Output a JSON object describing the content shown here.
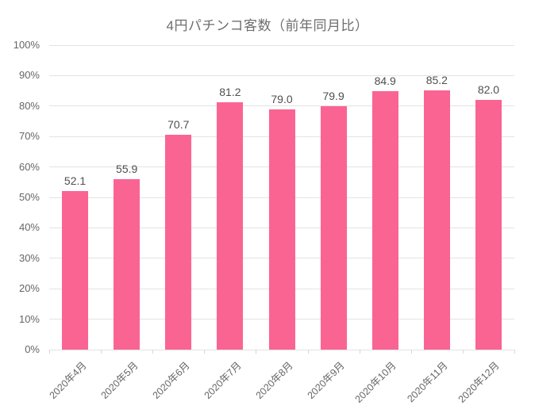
{
  "title": "4円パチンコ客数（前年同月比）",
  "colors": {
    "bar": "#fa6492",
    "title_text": "#6e6e6e",
    "axis_text": "#666666",
    "value_text": "#4f4f4f",
    "gridline": "#e3e3e3",
    "background": "#ffffff"
  },
  "chart_data": {
    "type": "bar",
    "title": "4円パチンコ客数（前年同月比）",
    "categories": [
      "2020年4月",
      "2020年5月",
      "2020年6月",
      "2020年7月",
      "2020年8月",
      "2020年9月",
      "2020年10月",
      "2020年11月",
      "2020年12月"
    ],
    "values": [
      52.1,
      55.9,
      70.7,
      81.2,
      79.0,
      79.9,
      84.9,
      85.2,
      82.0
    ],
    "value_labels": [
      "52.1",
      "55.9",
      "70.7",
      "81.2",
      "79.0",
      "79.9",
      "84.9",
      "85.2",
      "82.0"
    ],
    "xlabel": "",
    "ylabel": "",
    "ylim": [
      0,
      100
    ],
    "y_tick_step": 10,
    "y_tick_labels": [
      "0%",
      "10%",
      "20%",
      "30%",
      "40%",
      "50%",
      "60%",
      "70%",
      "80%",
      "90%",
      "100%"
    ],
    "grid": true,
    "legend": false,
    "bar_orientation": "vertical",
    "x_label_rotation_deg": -45
  }
}
